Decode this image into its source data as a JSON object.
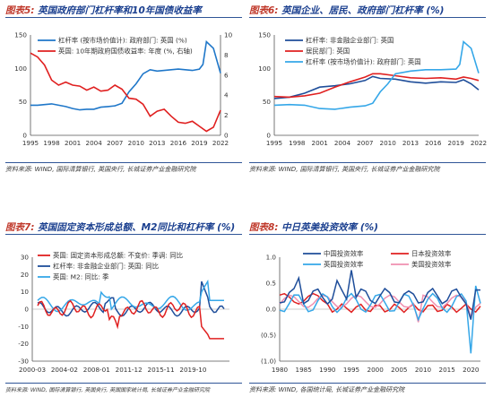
{
  "panels": [
    {
      "title_prefix": "图表5:",
      "title_text": "英国政府部门杠杆率和10年国债收益率",
      "source": "资料来源: WIND, 国际清算银行, 英国央行, 长城证券产业金融研究院"
    },
    {
      "title_prefix": "图表6:",
      "title_text": "英国企业、居民、政府部门杠杆率 (%)",
      "source": "资料来源: WIND, 国际清算银行, 英国央行, 长城证券产业金融研究院"
    },
    {
      "title_prefix": "图表7:",
      "title_text": "英国固定资本形成总额、M2同比和杠杆率 (%)",
      "source": "资料来源: WIND, 国际清算银行, 英国央行, 英国国家统计局, 长城证券产业金融研究院"
    },
    {
      "title_prefix": "图表8:",
      "title_text": "中日英美投资效率 (%)",
      "source": "资料来源: WIND, 各国统计局, 长城证券产业金融研究院"
    }
  ],
  "colors": {
    "blue": "#1f77c9",
    "red": "#e02020",
    "darkblue": "#1f4e9a",
    "lightblue": "#35a7e8",
    "pink": "#f08fb0"
  },
  "chart_data": [
    {
      "type": "line",
      "xticks": [
        "1995",
        "1998",
        "2001",
        "2004",
        "2007",
        "2010",
        "2013",
        "2016",
        "2019",
        "2022"
      ],
      "xlim": [
        1995,
        2022
      ],
      "ylim": [
        0,
        150
      ],
      "yticks": [
        0,
        50,
        100,
        150
      ],
      "y2lim": [
        0,
        10
      ],
      "y2ticks": [
        0,
        2,
        4,
        6,
        8,
        10
      ],
      "grid": false,
      "legend": "top",
      "series": [
        {
          "name": "杠杆率 (按市场价值计): 政府部门: 英国 (%)",
          "color": "blue",
          "axis": "left",
          "x": [
            1995,
            1996,
            1997,
            1998,
            1999,
            2000,
            2001,
            2002,
            2003,
            2004,
            2005,
            2006,
            2007,
            2008,
            2009,
            2010,
            2011,
            2012,
            2013,
            2014,
            2015,
            2016,
            2017,
            2018,
            2019,
            2019.5,
            2020,
            2021,
            2022
          ],
          "y": [
            45,
            45,
            46,
            47,
            45,
            43,
            40,
            38,
            39,
            39,
            42,
            43,
            44,
            48,
            65,
            77,
            92,
            98,
            96,
            97,
            98,
            99,
            98,
            97,
            99,
            106,
            140,
            130,
            93
          ]
        },
        {
          "name": "英国: 10年期政府国债收益率: 年度 (%, 右轴)",
          "color": "red",
          "axis": "right",
          "x": [
            1995,
            1996,
            1997,
            1998,
            1999,
            2000,
            2001,
            2002,
            2003,
            2004,
            2005,
            2006,
            2007,
            2008,
            2009,
            2010,
            2011,
            2012,
            2013,
            2014,
            2015,
            2016,
            2017,
            2018,
            2019,
            2020,
            2021,
            2022
          ],
          "y": [
            8.2,
            7.8,
            7.0,
            5.5,
            5.0,
            5.3,
            5.0,
            4.9,
            4.5,
            4.8,
            4.4,
            4.5,
            5.0,
            4.6,
            3.7,
            3.6,
            3.1,
            1.9,
            2.4,
            2.6,
            1.9,
            1.3,
            1.2,
            1.4,
            0.9,
            0.4,
            0.8,
            2.5
          ]
        }
      ]
    },
    {
      "type": "line",
      "xticks": [
        "1995",
        "1998",
        "2001",
        "2004",
        "2007",
        "2010",
        "2013",
        "2016",
        "2019",
        "2022"
      ],
      "xlim": [
        1995,
        2022
      ],
      "ylim": [
        0,
        150
      ],
      "yticks": [
        0,
        50,
        100,
        150
      ],
      "grid": false,
      "legend": "top-left",
      "series": [
        {
          "name": "杠杆率: 非金融企业部门: 英国",
          "color": "darkblue",
          "x": [
            1995,
            1997,
            1999,
            2001,
            2003,
            2005,
            2007,
            2008,
            2009,
            2011,
            2013,
            2015,
            2017,
            2019,
            2020,
            2021,
            2022
          ],
          "y": [
            55,
            57,
            63,
            72,
            74,
            77,
            82,
            88,
            85,
            84,
            80,
            78,
            80,
            79,
            83,
            77,
            68
          ]
        },
        {
          "name": "居民部门: 英国",
          "color": "red",
          "x": [
            1995,
            1997,
            1999,
            2001,
            2003,
            2005,
            2007,
            2008,
            2009,
            2011,
            2013,
            2015,
            2017,
            2019,
            2020,
            2021,
            2022
          ],
          "y": [
            58,
            57,
            59,
            63,
            72,
            80,
            87,
            92,
            92,
            89,
            86,
            85,
            86,
            84,
            87,
            85,
            82
          ]
        },
        {
          "name": "杠杆率 (按市场价值计): 政府部门: 英国",
          "color": "lightblue",
          "x": [
            1995,
            1997,
            1999,
            2001,
            2003,
            2005,
            2007,
            2008,
            2009,
            2010,
            2011,
            2013,
            2015,
            2017,
            2019,
            2019.5,
            2020,
            2021,
            2022
          ],
          "y": [
            45,
            46,
            45,
            40,
            39,
            42,
            44,
            48,
            65,
            77,
            92,
            96,
            98,
            98,
            99,
            106,
            140,
            130,
            93
          ]
        }
      ]
    },
    {
      "type": "line",
      "xticks": [
        "2000-03",
        "2004-02",
        "2008-01",
        "2011-12",
        "2015-11",
        "2019-10"
      ],
      "ylim": [
        -30,
        30
      ],
      "yticks": [
        -30,
        -20,
        -10,
        0,
        10,
        20,
        30
      ],
      "grid": false,
      "legend": "top-left",
      "series": [
        {
          "name": "英国: 固定资本形成总额: 不变价: 季调: 同比",
          "color": "red"
        },
        {
          "name": "杠杆率: 非金融企业部门: 英国: 同比",
          "color": "darkblue"
        },
        {
          "name": "英国: M2: 同比: 季",
          "color": "lightblue"
        }
      ]
    },
    {
      "type": "line",
      "xticks": [
        "1980",
        "1985",
        "1990",
        "1995",
        "2000",
        "2005",
        "2010",
        "2015",
        "2020"
      ],
      "xlim": [
        1980,
        2022
      ],
      "ylim": [
        -1.0,
        1.0
      ],
      "yticks": [
        "1.0",
        "0.5",
        "0.0",
        "(0.5)",
        "(1.0)"
      ],
      "grid": false,
      "legend": "top",
      "series": [
        {
          "name": "中国投资效率",
          "color": "darkblue"
        },
        {
          "name": "日本投资效率",
          "color": "red"
        },
        {
          "name": "英国投资效率",
          "color": "lightblue"
        },
        {
          "name": "美国投资效率",
          "color": "pink"
        }
      ]
    }
  ]
}
